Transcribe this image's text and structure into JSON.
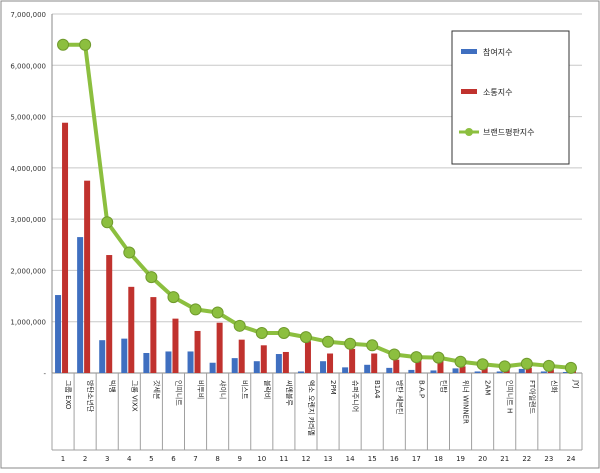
{
  "chart_data": {
    "type": "bar",
    "categories": [
      "그룹 EXO",
      "방탄소년단",
      "빅뱅",
      "그룹 VIXX",
      "갓세븐",
      "인피니트",
      "비투비",
      "샤이니",
      "비스트",
      "블락비",
      "씨엔블루",
      "엑소 오렌지 캬라멜",
      "2PM",
      "슈퍼주니어",
      "B1A4",
      "방탄 세븐틴",
      "B.A.P",
      "틴탑",
      "위너 WINNER",
      "2AM",
      "인피니트 H",
      "FT아일랜드",
      "신화",
      "JYJ"
    ],
    "rank_labels": [
      "1",
      "2",
      "3",
      "4",
      "5",
      "6",
      "7",
      "8",
      "9",
      "10",
      "11",
      "12",
      "13",
      "14",
      "15",
      "16",
      "17",
      "18",
      "19",
      "20",
      "21",
      "22",
      "23",
      "24"
    ],
    "series": [
      {
        "name": "참여지수",
        "kind": "bar",
        "color": "#3f6fc0",
        "values": [
          1520000,
          2650000,
          640000,
          670000,
          390000,
          420000,
          420000,
          200000,
          290000,
          230000,
          370000,
          30000,
          230000,
          110000,
          160000,
          100000,
          60000,
          50000,
          90000,
          30000,
          30000,
          80000,
          30000,
          20000
        ]
      },
      {
        "name": "소통지수",
        "kind": "bar",
        "color": "#c0322e",
        "values": [
          4880000,
          3750000,
          2300000,
          1680000,
          1480000,
          1060000,
          820000,
          980000,
          650000,
          540000,
          410000,
          620000,
          380000,
          470000,
          380000,
          260000,
          250000,
          240000,
          130000,
          130000,
          100000,
          100000,
          70000,
          60000
        ]
      },
      {
        "name": "브랜드평판지수",
        "kind": "line",
        "color": "#8cbf3f",
        "values": [
          6400000,
          6400000,
          2940000,
          2350000,
          1870000,
          1480000,
          1240000,
          1180000,
          920000,
          780000,
          780000,
          700000,
          610000,
          570000,
          540000,
          360000,
          310000,
          300000,
          220000,
          170000,
          130000,
          180000,
          140000,
          100000
        ]
      }
    ],
    "y_ticks": [
      "-",
      "1,000,000",
      "2,000,000",
      "3,000,000",
      "4,000,000",
      "5,000,000",
      "6,000,000",
      "7,000,000"
    ],
    "ylim": [
      0,
      7000000
    ],
    "grid": true,
    "legend_position": "top-right"
  }
}
